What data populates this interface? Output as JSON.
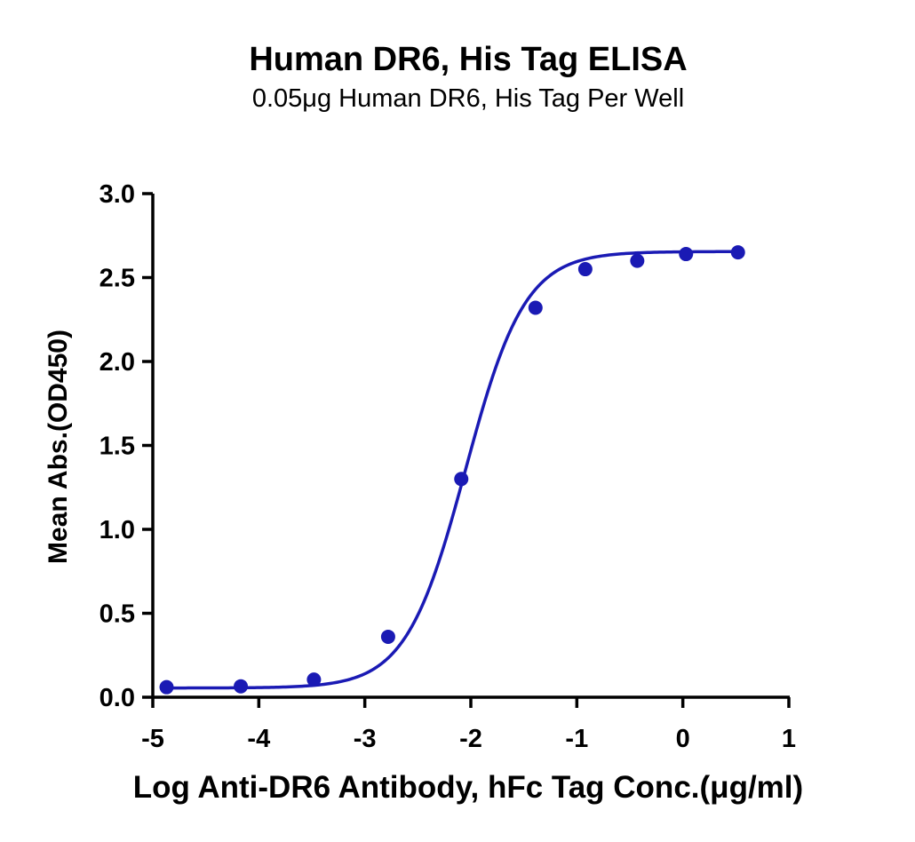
{
  "chart_data": {
    "type": "scatter",
    "title": "Human DR6, His Tag ELISA",
    "subtitle": "0.05μg Human DR6, His Tag Per Well",
    "xlabel": "Log Anti-DR6 Antibody, hFc Tag Conc.(μg/ml)",
    "ylabel": "Mean Abs.(OD450)",
    "xlim": [
      -5,
      1
    ],
    "ylim": [
      0,
      3.0
    ],
    "x_ticks": [
      -5,
      -4,
      -3,
      -2,
      -1,
      0,
      1
    ],
    "x_tick_labels": [
      "-5",
      "-4",
      "-3",
      "-2",
      "-1",
      "0",
      "1"
    ],
    "y_ticks": [
      0,
      0.5,
      1.0,
      1.5,
      2.0,
      2.5,
      3.0
    ],
    "y_tick_labels": [
      "0.0",
      "0.5",
      "1.0",
      "1.5",
      "2.0",
      "2.5",
      "3.0"
    ],
    "grid": false,
    "legend": "none",
    "series": [
      {
        "color": "#1a1ab4",
        "x": [
          -4.87,
          -4.17,
          -3.48,
          -2.78,
          -2.09,
          -1.39,
          -0.92,
          -0.43,
          0.03,
          0.52
        ],
        "y": [
          0.06,
          0.065,
          0.105,
          0.36,
          1.3,
          2.32,
          2.55,
          2.6,
          2.64,
          2.65
        ],
        "fit": "four-parameter logistic"
      }
    ]
  }
}
